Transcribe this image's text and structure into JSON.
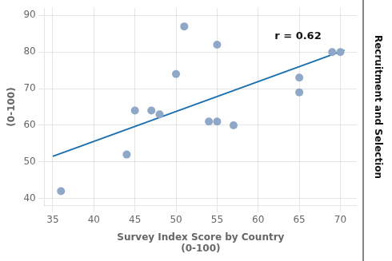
{
  "chart_data": {
    "type": "scatter",
    "title": "Recruitment and Selection",
    "xlabel": "Survey Index Score by Country\n(0-100)",
    "ylabel": "(0-100)",
    "series": [
      {
        "type": "scatter",
        "color": "#8fa8c8",
        "marker": "circle",
        "x": [
          36,
          44,
          45,
          47,
          48,
          50,
          51,
          54,
          55,
          55,
          57,
          65,
          65,
          69,
          70
        ],
        "values": [
          42,
          52,
          64,
          64,
          63,
          74,
          87,
          61,
          61,
          82,
          60,
          73,
          69,
          80,
          80
        ]
      },
      {
        "type": "line",
        "color": "#1a6faf",
        "line_style": "solid",
        "x": [
          35,
          70.5
        ],
        "values": [
          51.5,
          80.5
        ]
      }
    ],
    "annotations": [
      {
        "text": "r = 0.62",
        "x": 62,
        "y": 83.5
      }
    ],
    "xlim": [
      34,
      72
    ],
    "ylim": [
      38,
      92
    ],
    "xticks": [
      35,
      40,
      45,
      50,
      55,
      60,
      65,
      70
    ],
    "yticks": [
      40,
      50,
      60,
      70,
      80,
      90
    ],
    "grid": true,
    "legend": false
  }
}
